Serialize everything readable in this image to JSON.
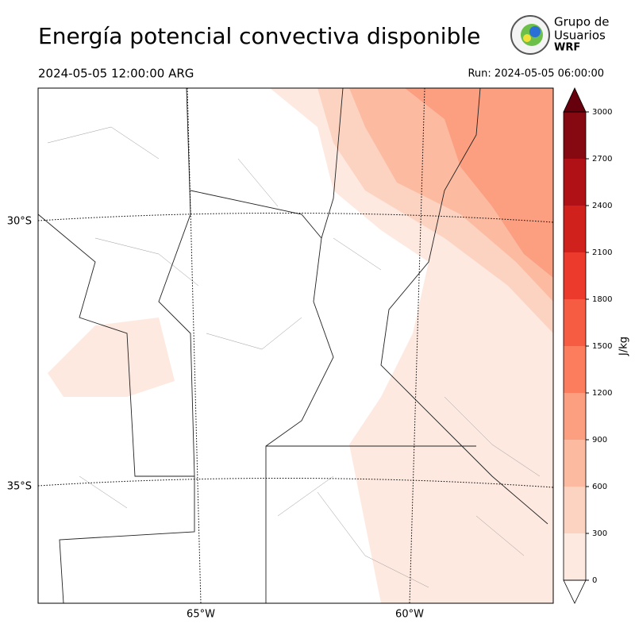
{
  "header": {
    "title": "Energía potencial convectiva disponible",
    "valid_time": "2024-05-05 12:00:00 ARG",
    "run_time": "Run: 2024-05-05 06:00:00"
  },
  "logo": {
    "line1": "Grupo de",
    "line2": "Usuarios",
    "line3": "WRF"
  },
  "map": {
    "lat_labels": [
      "30°S",
      "35°S"
    ],
    "lon_labels": [
      "65°W",
      "60°W"
    ]
  },
  "colorbar": {
    "label": "J/kg",
    "ticks": [
      0,
      300,
      600,
      900,
      1200,
      1500,
      1800,
      2100,
      2400,
      2700,
      3000
    ],
    "colors": [
      "#fee9e1",
      "#fcd3c1",
      "#fcbba1",
      "#fc9e80",
      "#fb7d5d",
      "#f65c42",
      "#ec3a2c",
      "#d0211d",
      "#af1117",
      "#860811"
    ],
    "over_color": "#67000d",
    "under_color": "#ffffff"
  }
}
